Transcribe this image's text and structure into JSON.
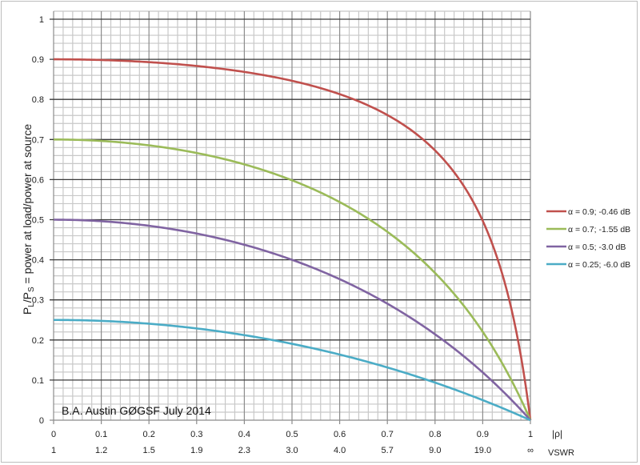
{
  "chart_data": {
    "type": "line",
    "title": "",
    "xlabel": "|ρ|",
    "x2label": "VSWR",
    "ylabel": "PL/PS = power at load/power at source",
    "ylabel_parts": {
      "p1": "P",
      "sub1": "L",
      "slash": "/P",
      "sub2": "S",
      "rest": " = power at load/power at source"
    },
    "xlim": [
      0,
      1
    ],
    "ylim": [
      0,
      1
    ],
    "x_ticks": [
      "0",
      "0.1",
      "0.2",
      "0.3",
      "0.4",
      "0.5",
      "0.6",
      "0.7",
      "0.8",
      "0.9",
      "1"
    ],
    "vswr_ticks": [
      "1",
      "1.2",
      "1.5",
      "1.9",
      "2.3",
      "3.0",
      "4.0",
      "5.7",
      "9.0",
      "19.0",
      "∞"
    ],
    "y_ticks": [
      "0",
      "0.1",
      "0.2",
      "0.3",
      "0.4",
      "0.5",
      "0.6",
      "0.7",
      "0.8",
      "0.9",
      "1"
    ],
    "grid": true,
    "legend_position": "right",
    "annotation": "B.A. Austin GØGSF July 2014",
    "x": [
      0,
      0.1,
      0.2,
      0.3,
      0.4,
      0.5,
      0.6,
      0.7,
      0.75,
      0.8,
      0.85,
      0.9,
      0.95,
      1.0
    ],
    "series": [
      {
        "name": "α = 0.9; -0.46 dB",
        "alpha": 0.9,
        "color": "#c0504d",
        "values": [
          0.9,
          0.899,
          0.895,
          0.885,
          0.868,
          0.846,
          0.809,
          0.751,
          0.708,
          0.65,
          0.566,
          0.437,
          0.245,
          0.0
        ]
      },
      {
        "name": "α = 0.7; -1.55 dB",
        "alpha": 0.7,
        "color": "#9bbb59",
        "values": [
          0.7,
          0.697,
          0.688,
          0.671,
          0.644,
          0.603,
          0.544,
          0.456,
          0.398,
          0.325,
          0.238,
          0.136,
          0.052,
          0.0
        ]
      },
      {
        "name": "α = 0.5; -3.0 dB",
        "alpha": 0.5,
        "color": "#8064a2",
        "values": [
          0.5,
          0.497,
          0.49,
          0.476,
          0.457,
          0.4,
          0.352,
          0.291,
          0.254,
          0.211,
          0.165,
          0.115,
          0.06,
          0.0
        ]
      },
      {
        "name": "α = 0.25; -6.0 dB",
        "alpha": 0.25,
        "color": "#4bacc6",
        "values": [
          0.25,
          0.248,
          0.24,
          0.228,
          0.211,
          0.19,
          0.163,
          0.13,
          0.112,
          0.092,
          0.071,
          0.049,
          0.025,
          0.0
        ]
      }
    ]
  }
}
